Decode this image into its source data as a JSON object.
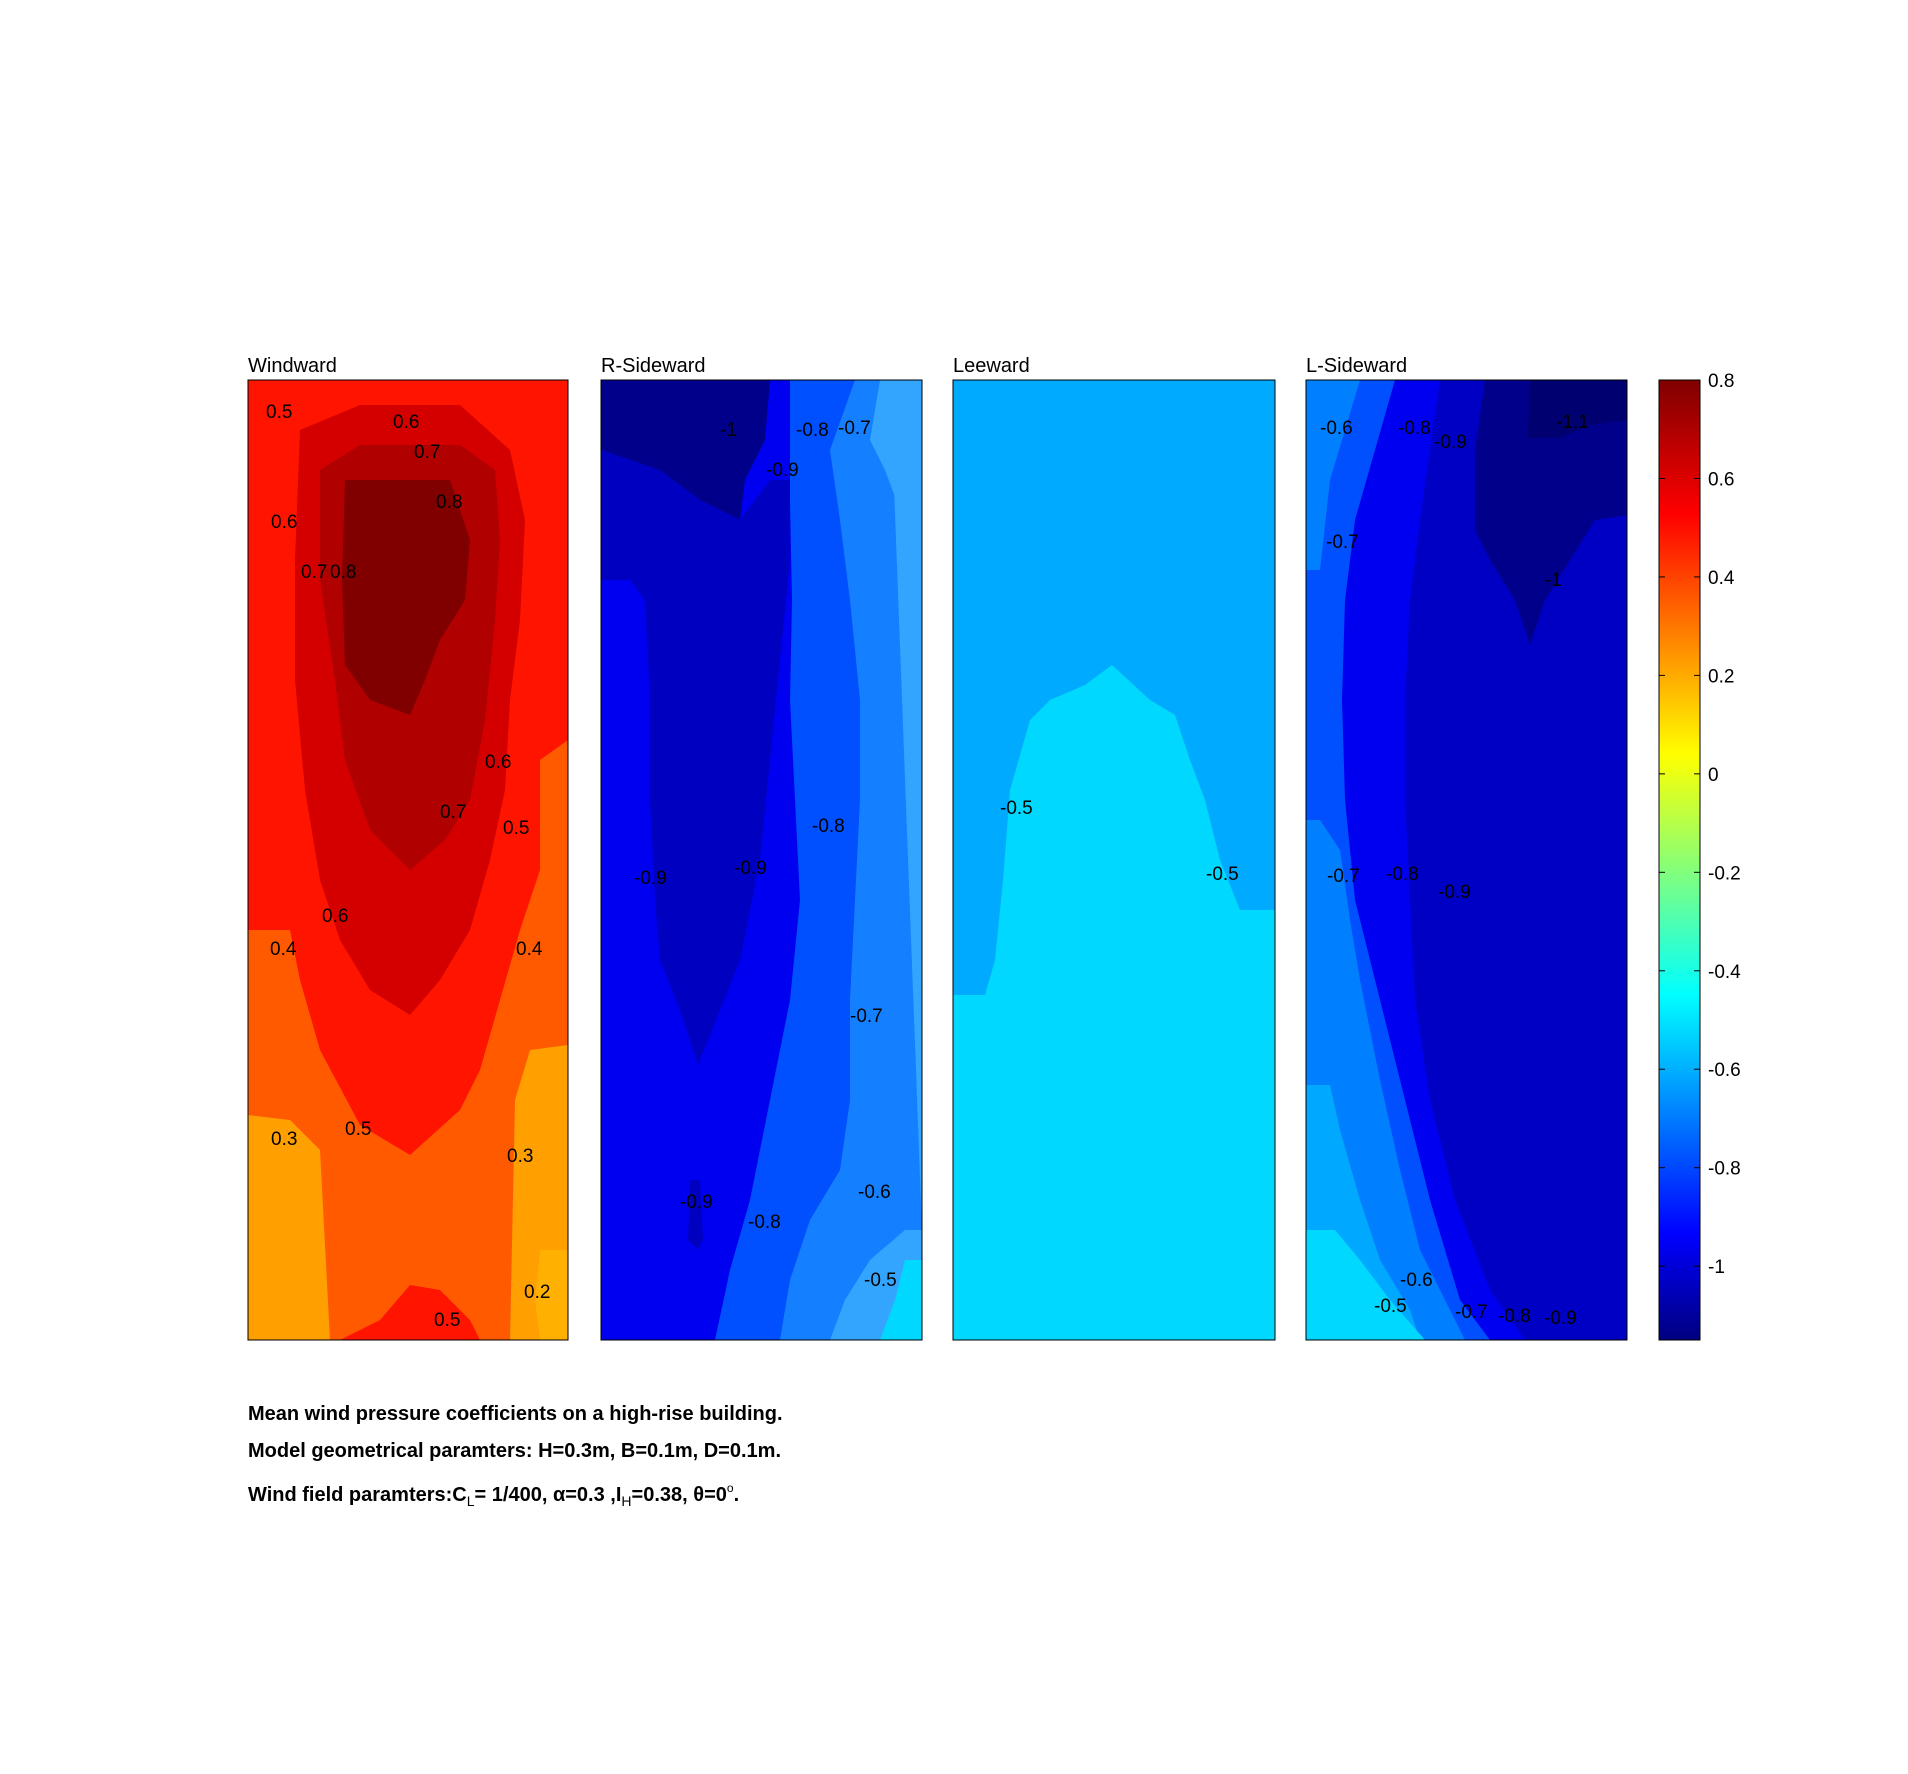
{
  "chart_data": [
    {
      "type": "contour",
      "title": "Windward",
      "contour_labels": [
        "0.5",
        "0.6",
        "0.7",
        "0.8",
        "0.6",
        "0.7",
        "0.8",
        "0.6",
        "0.7",
        "0.5",
        "0.6",
        "0.4",
        "0.4",
        "0.3",
        "0.5",
        "0.3",
        "0.2",
        "0.5"
      ]
    },
    {
      "type": "contour",
      "title": "R-Sideward",
      "contour_labels": [
        "-1",
        "-0.8",
        "-0.7",
        "-0.9",
        "-0.8",
        "-0.9",
        "-0.9",
        "-0.7",
        "-0.9",
        "-0.8",
        "-0.6",
        "-0.5"
      ]
    },
    {
      "type": "contour",
      "title": "Leeward",
      "contour_labels": [
        "-0.5",
        "-0.5"
      ]
    },
    {
      "type": "contour",
      "title": "L-Sideward",
      "contour_labels": [
        "-0.6",
        "-0.8",
        "-0.9",
        "-1.1",
        "-0.7",
        "-1",
        "-0.7",
        "-0.8",
        "-0.9",
        "-0.6",
        "-0.5",
        "-0.7",
        "-0.8",
        "-0.9"
      ]
    }
  ],
  "colorbar": {
    "colormap": "jet",
    "range": [
      -1.15,
      0.8
    ],
    "tick_labels": [
      "0.8",
      "0.6",
      "0.4",
      "0.2",
      "0",
      "-0.2",
      "-0.4",
      "-0.6",
      "-0.8",
      "-1"
    ]
  },
  "caption": {
    "line1": "Mean wind pressure coefficients on a high-rise building.",
    "line2": "Model geometrical paramters: H=0.3m, B=0.1m, D=0.1m.",
    "line3_prefix": "Wind field paramters:C",
    "line3_sub_L": "L",
    "line3_mid1": "= 1/400, ",
    "alpha_symbol": "α",
    "line3_mid2": "=0.3 ,I",
    "line3_sub_H": "H",
    "line3_mid3": "=0.38, ",
    "theta_symbol": "θ",
    "line3_mid4": "=0",
    "line3_sup_o": "o",
    "line3_end": "."
  },
  "colors": {
    "windward": [
      "#ff9f00",
      "#ff5a00",
      "#ff1400",
      "#d40000",
      "#800000"
    ],
    "r_sideward": [
      "#33a5ff",
      "#1580ff",
      "#0050ff",
      "#0000f0",
      "#0000c0",
      "#00008a"
    ],
    "leeward": [
      "#00aaff",
      "#00d8ff"
    ],
    "l_sideward": [
      "#00d8ff",
      "#00a8ff",
      "#0080ff",
      "#0050ff",
      "#0000f0",
      "#0000c4",
      "#00008a"
    ]
  }
}
